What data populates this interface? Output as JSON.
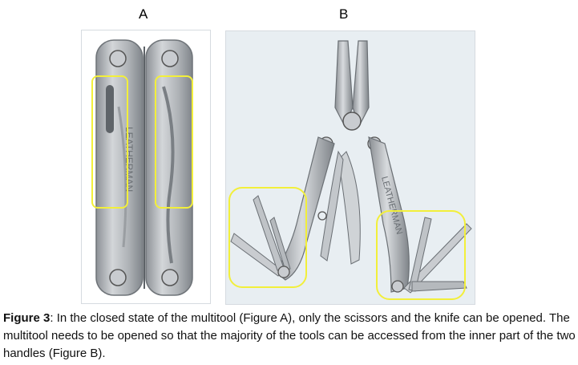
{
  "figure": {
    "panel_a_label": "A",
    "panel_b_label": "B",
    "brand_text": "LEATHERMAN",
    "caption": {
      "lead": "Figure 3",
      "body": ": In the closed state of the multitool (Figure A), only the scissors and the knife can be opened. The multitool needs to be opened so that the majority of the tools can be accessed from the inner part of the two handles (Figure B)."
    },
    "colors": {
      "highlight": "#f2ef3a",
      "steel": "#b8bcc0",
      "steel_dark": "#7d8287",
      "photo_b_bg": "#e8eef2"
    }
  }
}
